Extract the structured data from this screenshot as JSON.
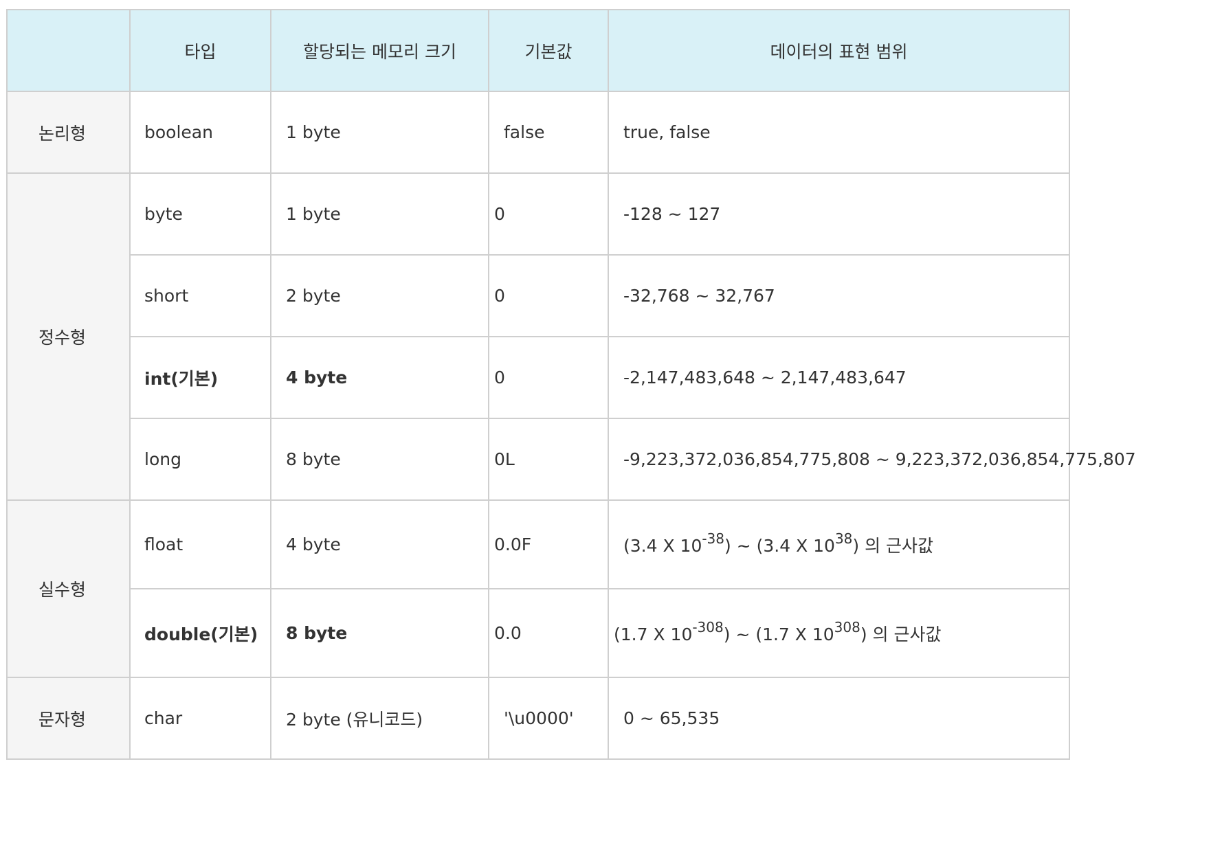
{
  "headers": {
    "category": "",
    "type": "타입",
    "size": "할당되는 메모리 크기",
    "default": "기본값",
    "range": "데이터의 표현 범위"
  },
  "rows": [
    {
      "category": "논리형",
      "type": "boolean",
      "size": "1 byte",
      "default": "false",
      "range": "true, false"
    },
    {
      "category": "정수형",
      "type": "byte",
      "size": "1 byte",
      "default": "0",
      "range": "-128 ~ 127"
    },
    {
      "type": "short",
      "size": "2 byte",
      "default": "0",
      "range": "-32,768 ~ 32,767"
    },
    {
      "type": "int(기본)",
      "size": "4 byte",
      "default": "0",
      "range": "-2,147,483,648 ~ 2,147,483,647"
    },
    {
      "type": "long",
      "size": "8 byte",
      "default": "0L",
      "range": "-9,223,372,036,854,775,808 ~ 9,223,372,036,854,775,807"
    },
    {
      "category": "실수형",
      "type": "float",
      "size": "4 byte",
      "default": "0.0F",
      "range_parts": {
        "a": "(3.4 X 10",
        "a_exp": "-38",
        "b": ") ~ (3.4 X 10",
        "b_exp": "38",
        "c": ") 의 근사값"
      }
    },
    {
      "type": "double(기본)",
      "size": "8 byte",
      "default": "0.0",
      "range_parts": {
        "a": "(1.7 X 10",
        "a_exp": "-308",
        "b": ") ~ (1.7 X 10",
        "b_exp": "308",
        "c": ") 의 근사값"
      }
    },
    {
      "category": "문자형",
      "type": "char",
      "size": "2 byte (유니코드)",
      "default": "'\\u0000'",
      "range": "0 ~ 65,535"
    }
  ]
}
